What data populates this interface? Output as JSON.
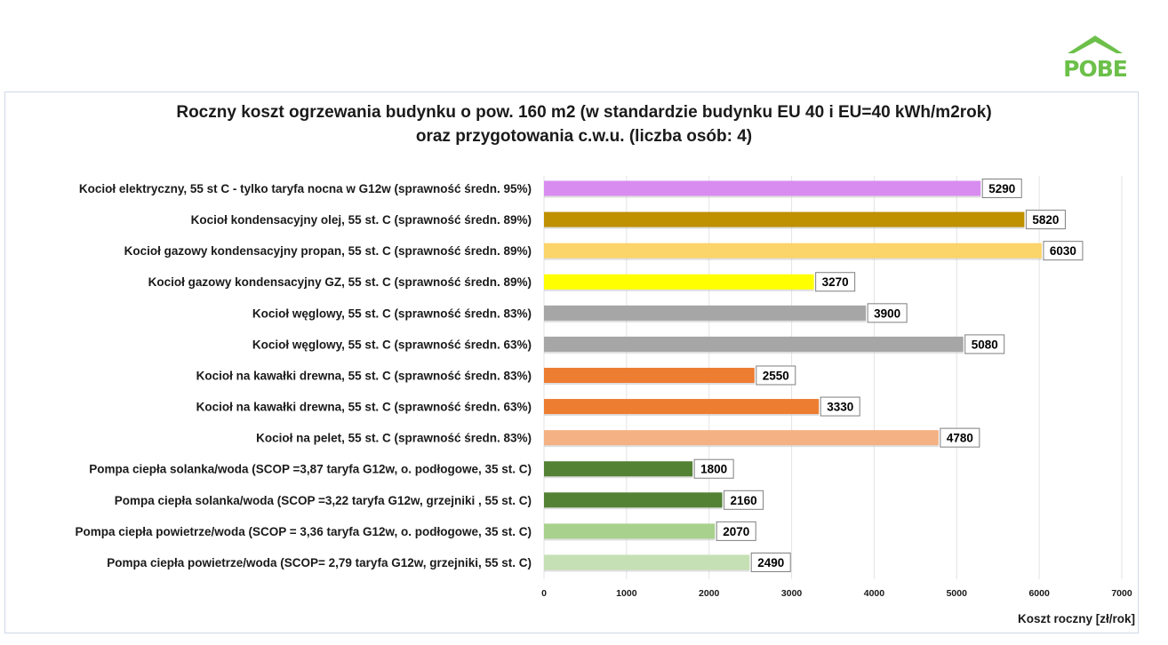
{
  "logo": {
    "text": "POBE",
    "color": "#6cc04a"
  },
  "chart_data": {
    "type": "bar",
    "orientation": "horizontal",
    "title": "Roczny koszt ogrzewania budynku o pow. 160 m2 (w standardzie budynku EU 40 i EU=40 kWh/m2rok)",
    "subtitle": "oraz przygotowania c.w.u. (liczba osób: 4)",
    "xlabel": "Koszt roczny [zł/rok]",
    "xlim": [
      0,
      7000
    ],
    "xticks": [
      0,
      1000,
      2000,
      3000,
      4000,
      5000,
      6000,
      7000
    ],
    "grid": true,
    "categories": [
      "Kocioł  elektryczny, 55 st C - tylko taryfa nocna w G12w (sprawność średn. 95%)",
      "Kocioł  kondensacyjny olej, 55 st. C (sprawność średn. 89%)",
      "Kocioł gazowy kondensacyjny propan, 55 st. C (sprawność średn. 89%)",
      "Kocioł gazowy kondensacyjny GZ, 55 st. C (sprawność średn. 89%)",
      "Kocioł węglowy,  55 st. C (sprawność średn. 83%)",
      "Kocioł węglowy, 55 st. C (sprawność średn. 63%)",
      "Kocioł na kawałki drewna, 55 st. C (sprawność średn. 83%)",
      "Kocioł na kawałki drewna, 55 st. C (sprawność średn. 63%)",
      "Kocioł na pelet, 55 st. C (sprawność średn. 83%)",
      "Pompa ciepła solanka/woda (SCOP =3,87 taryfa G12w, o. podłogowe, 35 st. C)",
      "Pompa ciepła solanka/woda (SCOP =3,22 taryfa G12w, grzejniki , 55 st. C)",
      "Pompa ciepła powietrze/woda (SCOP = 3,36 taryfa G12w, o. podłogowe, 35 st. C)",
      "Pompa ciepła powietrze/woda (SCOP= 2,79 taryfa G12w, grzejniki, 55 st. C)"
    ],
    "values": [
      5290,
      5820,
      6030,
      3270,
      3900,
      5080,
      2550,
      3330,
      4780,
      1800,
      2160,
      2070,
      2490
    ],
    "colors": [
      "#d98cf0",
      "#bf9000",
      "#fbd46a",
      "#ffff00",
      "#a6a6a6",
      "#a6a6a6",
      "#ed7d31",
      "#ed7d31",
      "#f4b183",
      "#548235",
      "#548235",
      "#a9d18e",
      "#c5e0b4"
    ]
  }
}
